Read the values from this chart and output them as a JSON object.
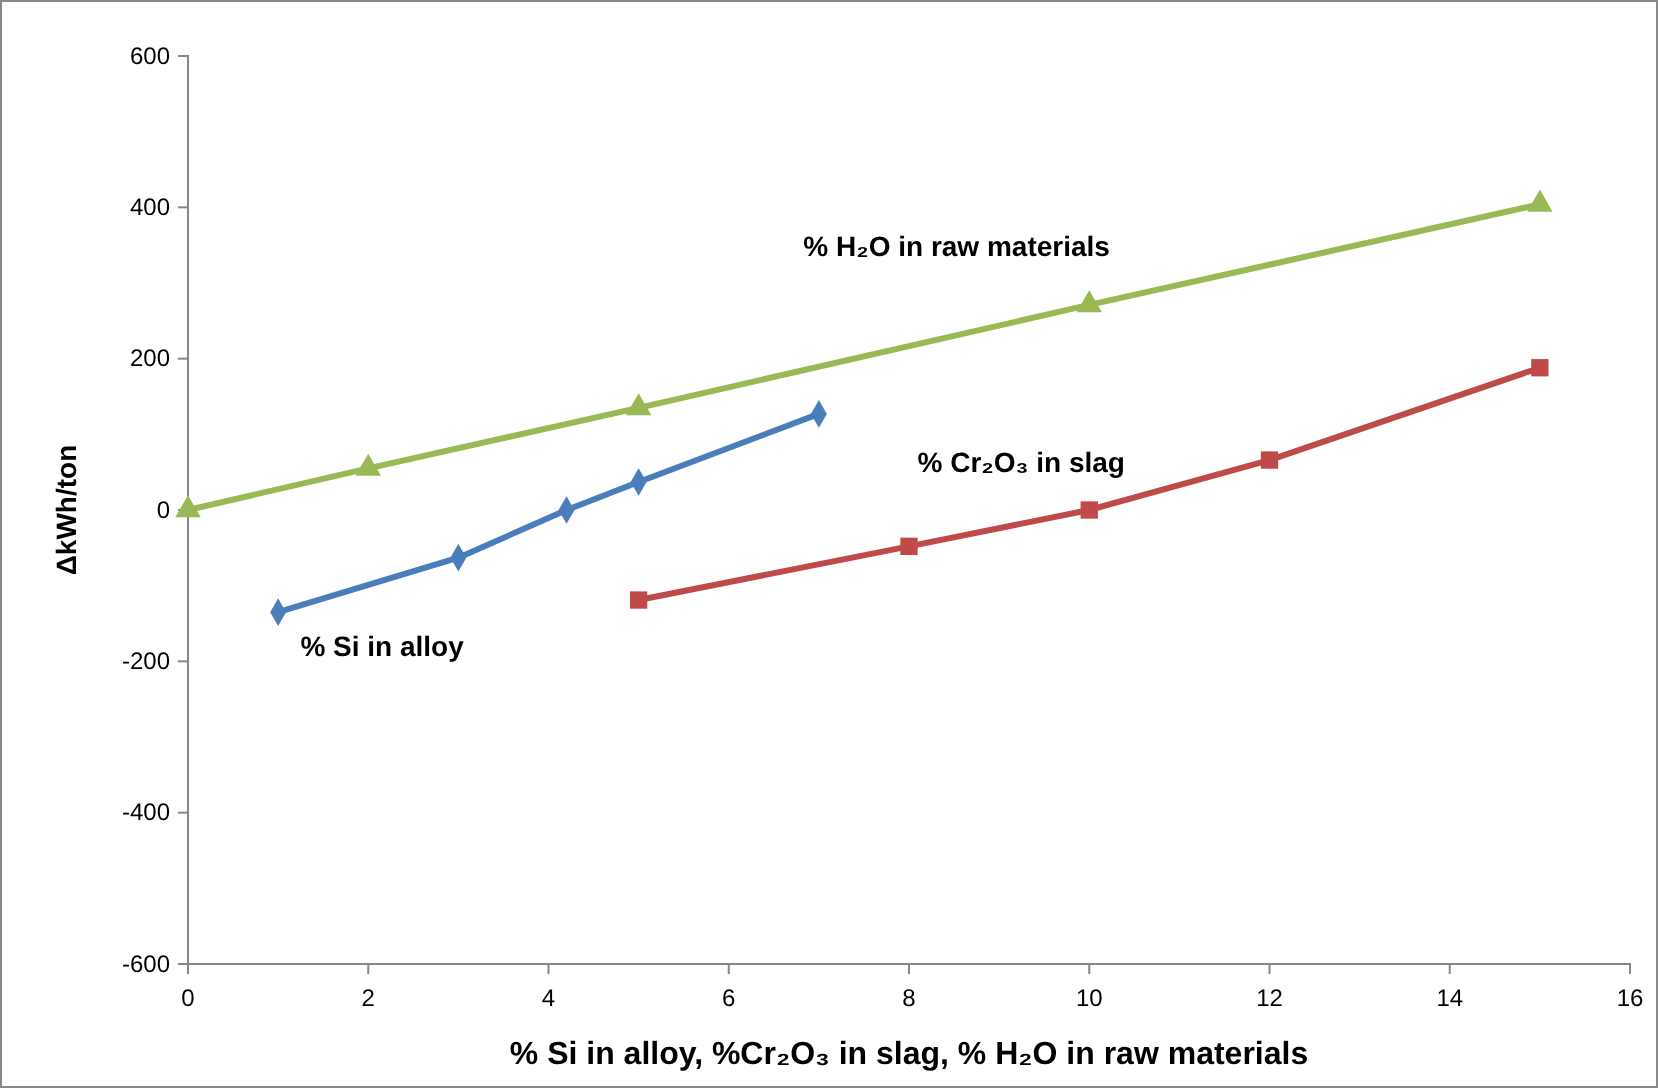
{
  "chart_data": {
    "type": "line",
    "xlabel": "% Si in alloy, %Cr₂O₃ in slag, % H₂O in raw materials",
    "ylabel": "ΔkWh/ton",
    "xlim": [
      0,
      16
    ],
    "xticks": [
      0,
      2,
      4,
      6,
      8,
      10,
      12,
      14,
      16
    ],
    "ylim": [
      -600,
      600
    ],
    "yticks": [
      -600,
      -400,
      -200,
      0,
      200,
      400,
      600
    ],
    "series": [
      {
        "name": "% Si in alloy",
        "color": "#4a7ebb",
        "marker": "diamond",
        "x": [
          1,
          3,
          4.2,
          5,
          7
        ],
        "values": [
          -135,
          -63,
          0,
          37,
          127
        ]
      },
      {
        "name": "% Cr₂O₃ in slag",
        "color": "#be4b48",
        "marker": "square",
        "x": [
          5,
          8,
          10,
          12,
          15
        ],
        "values": [
          -119,
          -48,
          0,
          66,
          188
        ]
      },
      {
        "name": "% H₂O in raw materials",
        "color": "#98b954",
        "marker": "triangle",
        "x": [
          0,
          2,
          5,
          10,
          15
        ],
        "values": [
          0,
          55,
          135,
          271,
          404
        ]
      }
    ]
  }
}
